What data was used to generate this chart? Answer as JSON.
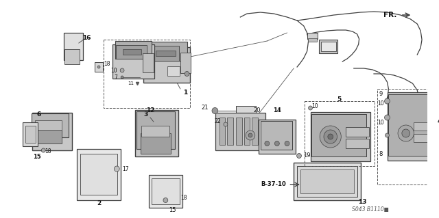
{
  "bg_color": "#ffffff",
  "diagram_code": "S043 B1110■",
  "fr_label": "FR.",
  "b37_label": "B-37-10",
  "fig_width": 6.4,
  "fig_height": 3.19,
  "dpi": 100,
  "gray_light": "#c8c8c8",
  "gray_mid": "#a0a0a0",
  "gray_dark": "#707070",
  "line_color": "#404040",
  "label_color": "#111111"
}
